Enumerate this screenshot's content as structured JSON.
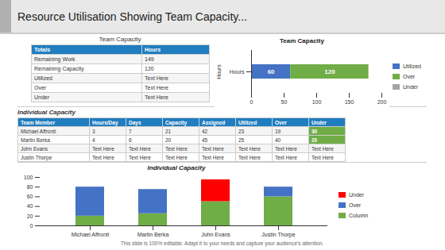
{
  "title": "Resource Utilisation Showing Team Capacity...",
  "caption": "This slide is 100% editable. Adapt it to your needs and capture your  audience's attention.",
  "chart_data": [
    {
      "type": "table",
      "title": "Team Capacity",
      "color": "#1F7DC0",
      "columns": [
        "Totals",
        "Hours"
      ],
      "rows": [
        [
          "Remaining Work",
          "149"
        ],
        [
          "Remaining Capacity",
          "120"
        ],
        [
          "Utilized",
          "Text Here"
        ],
        [
          "Over",
          "Text Here"
        ],
        [
          "Under",
          "Text Here"
        ]
      ]
    },
    {
      "type": "bar",
      "title": "Team Capacity",
      "orientation": "horizontal",
      "stacked": true,
      "data_labels": true,
      "categories": [
        "Hours"
      ],
      "ylabel": "Hours",
      "series": [
        {
          "name": "Utilized",
          "color": "#4472C4",
          "values": [
            60
          ]
        },
        {
          "name": "Over",
          "color": "#70AD47",
          "values": [
            120
          ]
        },
        {
          "name": "Under",
          "color": "#A5A5A5",
          "values": [
            null
          ]
        }
      ],
      "xlim": [
        0,
        200
      ],
      "xticks": [
        0,
        50,
        100,
        150,
        200
      ]
    },
    {
      "type": "table",
      "title": "Individual Capacity",
      "color": "#1F7DC0",
      "columns": [
        "Team Member",
        "Hours/Day",
        "Days",
        "Capacity",
        "Assigned",
        "Utilized",
        "Over",
        "Under"
      ],
      "rows": [
        [
          "Michael Affronti",
          "3",
          "7",
          "21",
          "42",
          "23",
          "19",
          "30"
        ],
        [
          "Martin Berka",
          "4",
          "6",
          "20",
          "45",
          "25",
          "40",
          "20"
        ],
        [
          "John Evans",
          "Text Here",
          "Text Here",
          "Text Here",
          "Text Here",
          "Text Here",
          "Text Here",
          "Text Here"
        ],
        [
          "Justin Thorpe",
          "Text Here",
          "Text Here",
          "Text Here",
          "Text Here",
          "Text Here",
          "Text Here",
          "Text Here"
        ]
      ]
    },
    {
      "type": "bar",
      "title": "Individual Capacity",
      "stacked": true,
      "categories": [
        "Michael Affronti",
        "Martin Berka",
        "John Evans",
        "Justin Thorpe"
      ],
      "series": [
        {
          "name": "Column",
          "color": "#70AD47",
          "values": [
            20,
            25,
            50,
            60
          ]
        },
        {
          "name": "Over",
          "color": "#4472C4",
          "values": [
            60,
            50,
            0,
            20
          ]
        },
        {
          "name": "Under",
          "color": "#FF0000",
          "values": [
            0,
            0,
            45,
            0
          ]
        }
      ],
      "ylim": [
        0,
        100
      ],
      "yticks": [
        0,
        20,
        40,
        60,
        80,
        100
      ]
    }
  ]
}
